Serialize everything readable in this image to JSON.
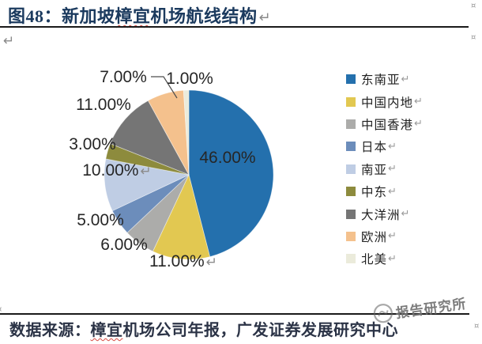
{
  "header": {
    "title": {
      "pre": "图48：新加坡",
      "spellcheck": "樟宜",
      "post": "机场航线结构"
    }
  },
  "marks": {
    "pilcrow": "↵",
    "cell": "¤"
  },
  "chart_data": {
    "type": "pie",
    "title": "新加坡樟宜机场航线结构",
    "unit": "percent",
    "start_angle_deg": 0,
    "direction": "clockwise",
    "label_format": "0.00%",
    "legend_position": "right",
    "slices": [
      {
        "label": "东南亚",
        "value": 46,
        "color": "#2470AD"
      },
      {
        "label": "中国内地",
        "value": 11,
        "color": "#E2C851"
      },
      {
        "label": "中国香港",
        "value": 6,
        "color": "#ACACAA"
      },
      {
        "label": "日本",
        "value": 5,
        "color": "#6C8DBB"
      },
      {
        "label": "南亚",
        "value": 10,
        "color": "#BFCDE4"
      },
      {
        "label": "中东",
        "value": 3,
        "color": "#8D8B3D"
      },
      {
        "label": "大洋洲",
        "value": 11,
        "color": "#757575"
      },
      {
        "label": "欧洲",
        "value": 7,
        "color": "#F4C18D"
      },
      {
        "label": "北美",
        "value": 1,
        "color": "#EBEBDB"
      }
    ],
    "inside_label_color": "#17365D",
    "outside_label_color": "#262626"
  },
  "source": {
    "label": {
      "pre": "数据来源：",
      "spellcheck": "樟宜",
      "post": "机场公司年报，广发证券发展研究中心"
    }
  },
  "watermark": {
    "text": "报告研究所"
  }
}
